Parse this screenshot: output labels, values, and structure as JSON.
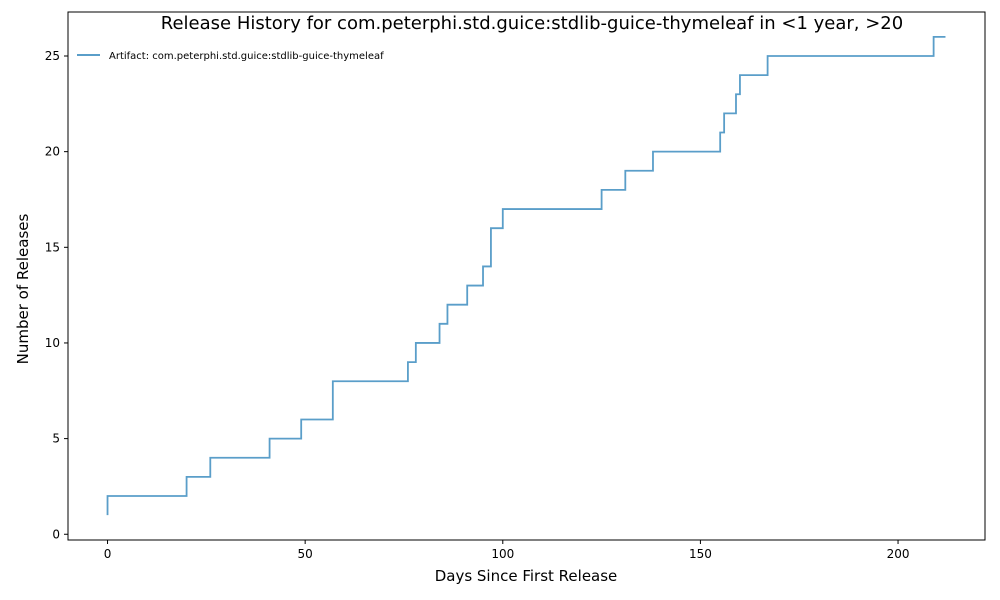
{
  "chart_data": {
    "type": "line",
    "title": "Release History for com.peterphi.std.guice:stdlib-guice-thymeleaf in <1 year, >20",
    "xlabel": "Days Since First Release",
    "ylabel": "Number of Releases",
    "xlim": [
      -10,
      222
    ],
    "ylim": [
      -0.3,
      27.3
    ],
    "xticks": [
      0,
      50,
      100,
      150,
      200
    ],
    "yticks": [
      0,
      5,
      10,
      15,
      20,
      25
    ],
    "step": "post",
    "grid": false,
    "legend_position": "top-left",
    "series": [
      {
        "name": "Artifact: com.peterphi.std.guice:stdlib-guice-thymeleaf",
        "color": "#5a9ec9",
        "x": [
          0,
          0,
          20,
          26,
          41,
          49,
          57,
          76,
          78,
          84,
          86,
          91,
          95,
          97,
          100,
          125,
          131,
          138,
          155,
          156,
          159,
          160,
          167,
          209,
          212
        ],
        "y": [
          1,
          2,
          3,
          4,
          5,
          6,
          8,
          9,
          10,
          11,
          12,
          13,
          14,
          16,
          17,
          18,
          19,
          20,
          21,
          22,
          23,
          24,
          25,
          26,
          26
        ]
      }
    ]
  }
}
